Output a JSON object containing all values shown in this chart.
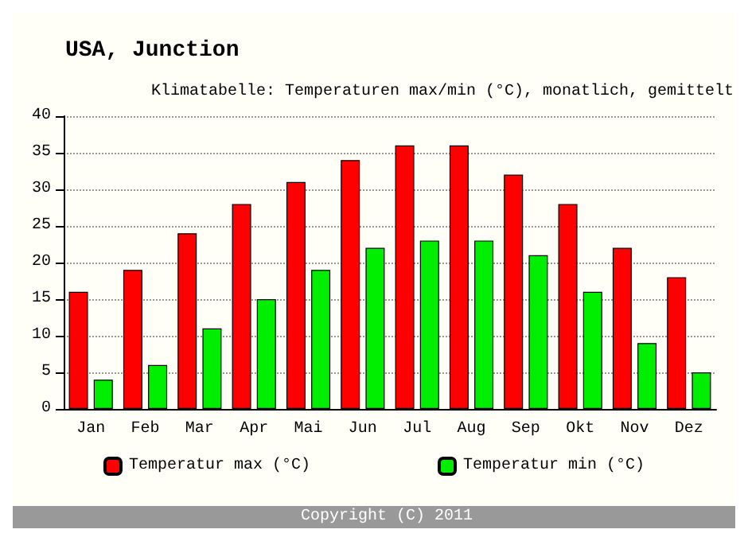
{
  "chart_data": {
    "type": "bar",
    "title": "USA, Junction",
    "subtitle": "Klimatabelle: Temperaturen max/min (°C), monatlich, gemittelt",
    "categories": [
      "Jan",
      "Feb",
      "Mar",
      "Apr",
      "Mai",
      "Jun",
      "Jul",
      "Aug",
      "Sep",
      "Okt",
      "Nov",
      "Dez"
    ],
    "series": [
      {
        "name": "Temperatur max (°C)",
        "color": "#ff0000",
        "values": [
          16,
          19,
          24,
          28,
          31,
          34,
          36,
          36,
          32,
          28,
          22,
          18
        ]
      },
      {
        "name": "Temperatur min (°C)",
        "color": "#00ee00",
        "values": [
          4,
          6,
          11,
          15,
          19,
          22,
          23,
          23,
          21,
          16,
          9,
          5
        ]
      }
    ],
    "ylim": [
      0,
      40
    ],
    "yticks": [
      0,
      5,
      10,
      15,
      20,
      25,
      30,
      35,
      40
    ],
    "grid": "y",
    "legend": "bottom",
    "annotations": [
      "Copyright (C) 2011"
    ]
  }
}
